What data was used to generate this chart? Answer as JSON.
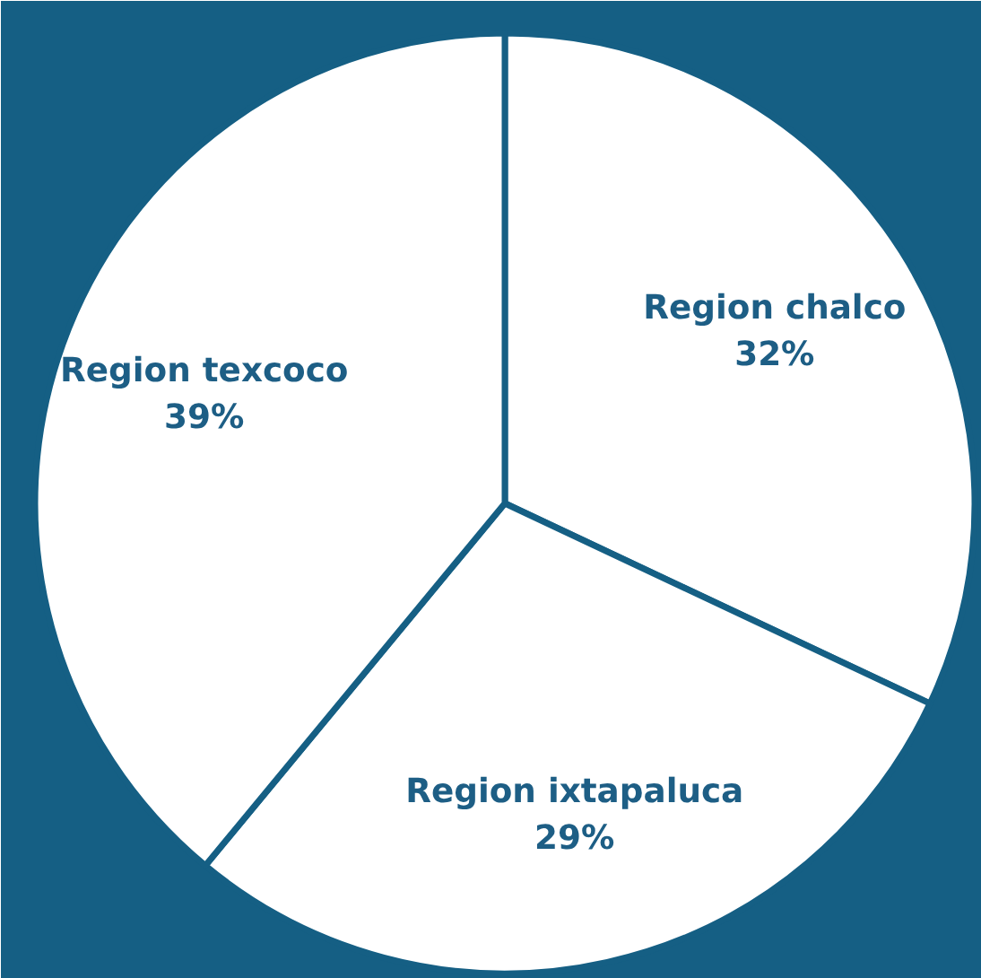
{
  "chart_data": {
    "type": "pie",
    "categories": [
      "Region chalco",
      "Region ixtapaluca",
      "Region texcoco"
    ],
    "values": [
      32,
      29,
      39
    ],
    "value_labels": [
      "32%",
      "29%",
      "39%"
    ],
    "colors": [
      "#ffffff",
      "#ffffff",
      "#ffffff"
    ],
    "legend": false
  }
}
